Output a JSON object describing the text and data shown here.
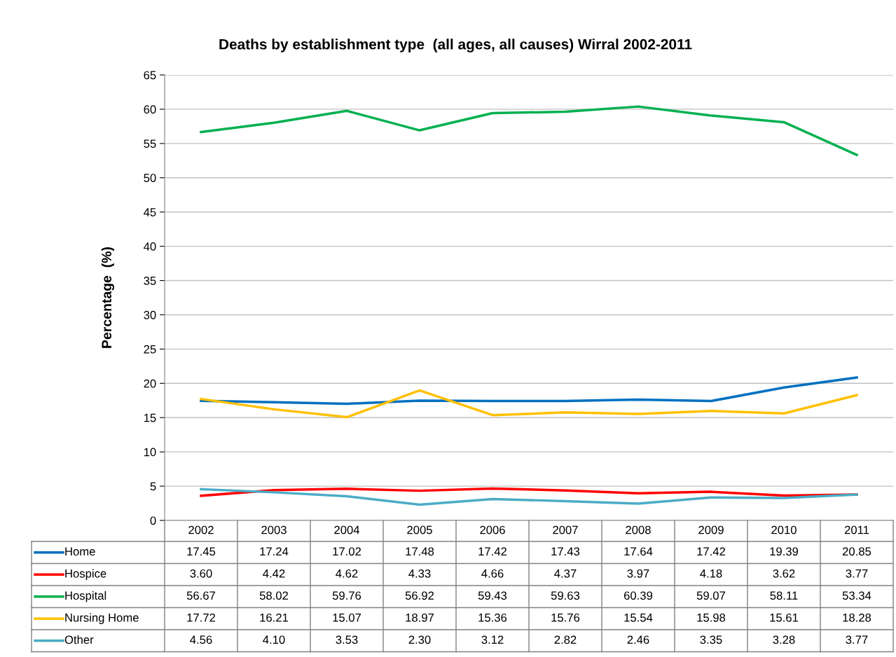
{
  "chart_data": {
    "type": "line",
    "title": "Deaths by establishment type  (all ages, all causes) Wirral 2002-2011",
    "ylabel": "Percentage  (%)",
    "categories": [
      "2002",
      "2003",
      "2004",
      "2005",
      "2006",
      "2007",
      "2008",
      "2009",
      "2010",
      "2011"
    ],
    "ylim": [
      0,
      65
    ],
    "yticks": [
      0,
      5,
      10,
      15,
      20,
      25,
      30,
      35,
      40,
      45,
      50,
      55,
      60,
      65
    ],
    "grid": "y",
    "legend": "bottom left",
    "marker": "none",
    "line_style": "solid",
    "series": [
      {
        "name": "Home",
        "color": "#0070c0",
        "values": [
          17.45,
          17.24,
          17.02,
          17.48,
          17.42,
          17.43,
          17.64,
          17.42,
          19.39,
          20.85
        ],
        "value_labels": [
          "17.45",
          "17.24",
          "17.02",
          "17.48",
          "17.42",
          "17.43",
          "17.64",
          "17.42",
          "19.39",
          "20.85"
        ]
      },
      {
        "name": "Hospice",
        "color": "#ff0000",
        "values": [
          3.6,
          4.42,
          4.62,
          4.33,
          4.66,
          4.37,
          3.97,
          4.18,
          3.62,
          3.77
        ],
        "value_labels": [
          "3.60",
          "4.42",
          "4.62",
          "4.33",
          "4.66",
          "4.37",
          "3.97",
          "4.18",
          "3.62",
          "3.77"
        ]
      },
      {
        "name": "Hospital",
        "color": "#00b050",
        "values": [
          56.67,
          58.02,
          59.76,
          56.92,
          59.43,
          59.63,
          60.39,
          59.07,
          58.11,
          53.34
        ],
        "value_labels": [
          "56.67",
          "58.02",
          "59.76",
          "56.92",
          "59.43",
          "59.63",
          "60.39",
          "59.07",
          "58.11",
          "53.34"
        ]
      },
      {
        "name": "Nursing Home",
        "color": "#ffc000",
        "values": [
          17.72,
          16.21,
          15.07,
          18.97,
          15.36,
          15.76,
          15.54,
          15.98,
          15.61,
          18.28
        ],
        "value_labels": [
          "17.72",
          "16.21",
          "15.07",
          "18.97",
          "15.36",
          "15.76",
          "15.54",
          "15.98",
          "15.61",
          "18.28"
        ]
      },
      {
        "name": "Other",
        "color": "#4bacc6",
        "values": [
          4.56,
          4.1,
          3.53,
          2.3,
          3.12,
          2.82,
          2.46,
          3.35,
          3.28,
          3.77
        ],
        "value_labels": [
          "4.56",
          "4.10",
          "3.53",
          "2.30",
          "3.12",
          "2.82",
          "2.46",
          "3.35",
          "3.28",
          "3.77"
        ]
      }
    ]
  }
}
